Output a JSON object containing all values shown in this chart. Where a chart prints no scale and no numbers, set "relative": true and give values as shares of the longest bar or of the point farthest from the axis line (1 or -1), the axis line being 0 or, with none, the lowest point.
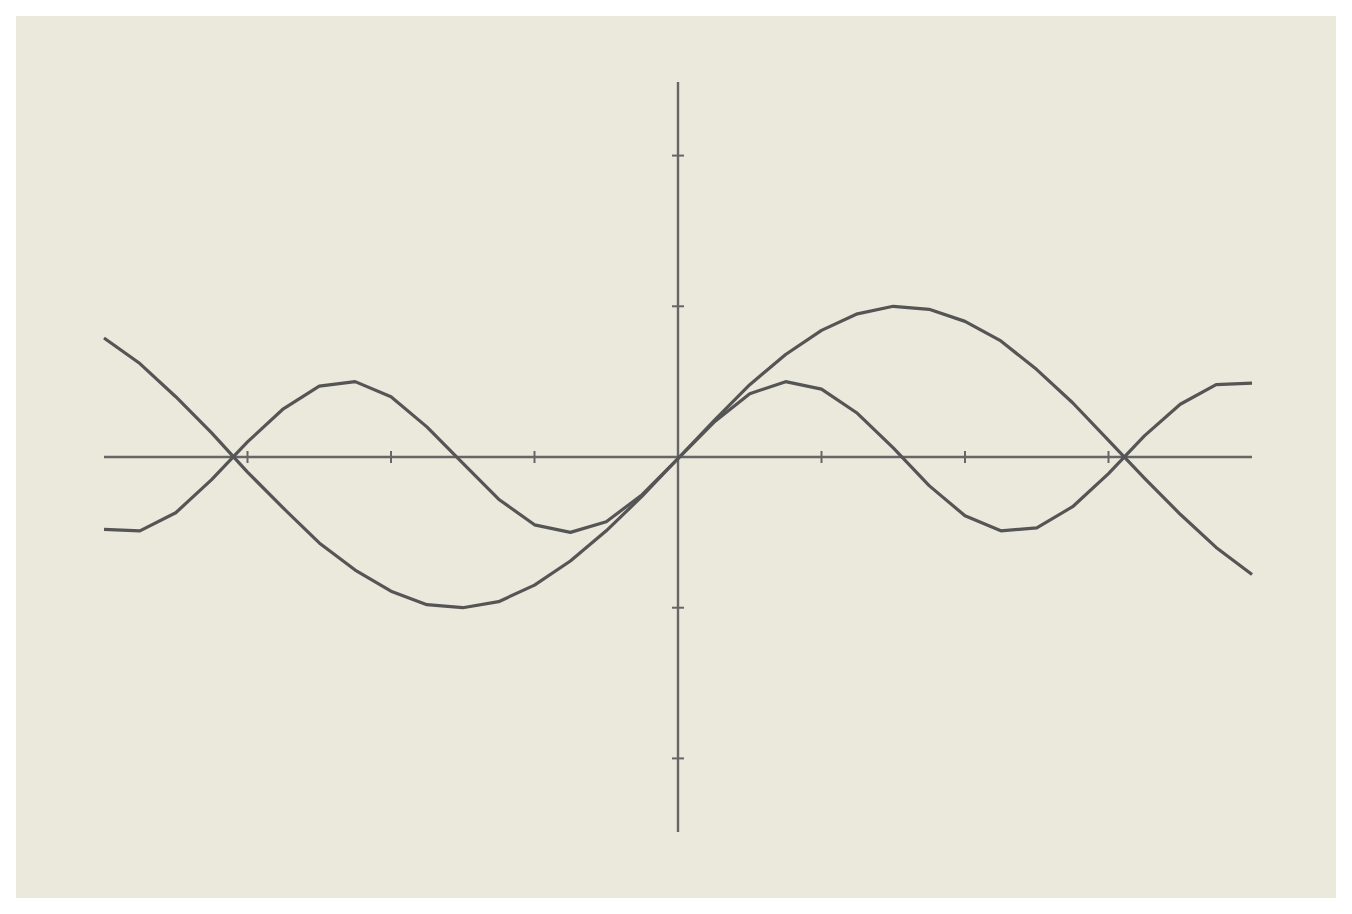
{
  "chart_data": {
    "type": "line",
    "relative": true,
    "categories": [
      null,
      null,
      null,
      null,
      null,
      null,
      null,
      null,
      null,
      null,
      null,
      null,
      null,
      null,
      null,
      null,
      null,
      null,
      null,
      null,
      null,
      null,
      null,
      null,
      null,
      null,
      null,
      null,
      null,
      null,
      null,
      null,
      null
    ],
    "series": [
      {
        "color": "#555555",
        "values": [
          0.79,
          0.62,
          0.4,
          0.16,
          -0.1,
          -0.34,
          -0.57,
          -0.75,
          -0.89,
          -0.98,
          -1.0,
          -0.96,
          -0.85,
          -0.69,
          -0.49,
          -0.26,
          -0.01,
          0.24,
          0.48,
          0.68,
          0.84,
          0.95,
          1.0,
          0.98,
          0.9,
          0.77,
          0.58,
          0.36,
          0.11,
          -0.14,
          -0.38,
          -0.6,
          -0.78
        ]
      },
      {
        "color": "#555555",
        "values": [
          -0.48,
          -0.49,
          -0.37,
          -0.15,
          0.1,
          0.32,
          0.47,
          0.5,
          0.4,
          0.2,
          -0.04,
          -0.28,
          -0.45,
          -0.5,
          -0.43,
          -0.25,
          -0.01,
          0.23,
          0.42,
          0.5,
          0.45,
          0.29,
          0.06,
          -0.19,
          -0.39,
          -0.49,
          -0.47,
          -0.33,
          -0.11,
          0.14,
          0.35,
          0.48,
          0.49
        ]
      }
    ],
    "grid": false,
    "legend": false,
    "marker": "none",
    "line_style": "solid"
  }
}
